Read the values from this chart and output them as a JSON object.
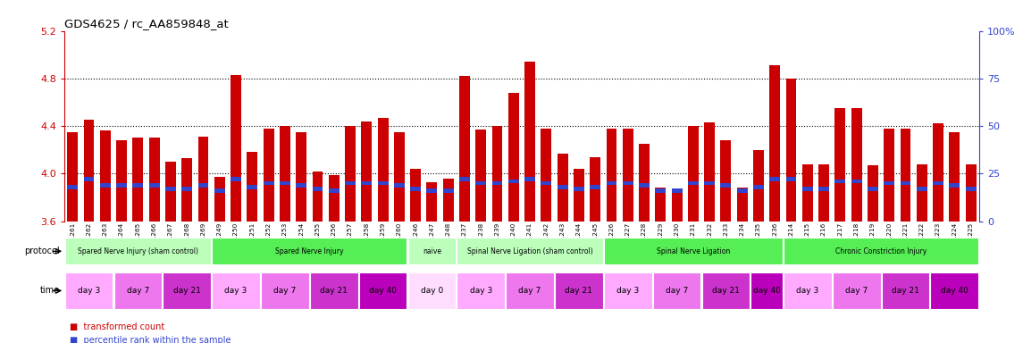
{
  "title": "GDS4625 / rc_AA859848_at",
  "samples": [
    "GSM761261",
    "GSM761262",
    "GSM761263",
    "GSM761264",
    "GSM761265",
    "GSM761266",
    "GSM761267",
    "GSM761268",
    "GSM761269",
    "GSM761249",
    "GSM761250",
    "GSM761251",
    "GSM761252",
    "GSM761253",
    "GSM761254",
    "GSM761255",
    "GSM761256",
    "GSM761257",
    "GSM761258",
    "GSM761259",
    "GSM761260",
    "GSM761246",
    "GSM761247",
    "GSM761248",
    "GSM761237",
    "GSM761238",
    "GSM761239",
    "GSM761240",
    "GSM761241",
    "GSM761242",
    "GSM761243",
    "GSM761244",
    "GSM761245",
    "GSM761226",
    "GSM761227",
    "GSM761228",
    "GSM761229",
    "GSM761230",
    "GSM761231",
    "GSM761232",
    "GSM761233",
    "GSM761234",
    "GSM761235",
    "GSM761236",
    "GSM761214",
    "GSM761215",
    "GSM761216",
    "GSM761217",
    "GSM761218",
    "GSM761219",
    "GSM761220",
    "GSM761221",
    "GSM761222",
    "GSM761223",
    "GSM761224",
    "GSM761225"
  ],
  "red_values": [
    4.35,
    4.45,
    4.36,
    4.28,
    4.3,
    4.3,
    4.1,
    4.13,
    4.31,
    3.97,
    4.83,
    4.18,
    4.38,
    4.4,
    4.35,
    4.02,
    3.99,
    4.4,
    4.44,
    4.47,
    4.35,
    4.04,
    3.93,
    3.96,
    4.82,
    4.37,
    4.4,
    4.68,
    4.94,
    4.38,
    4.17,
    4.04,
    4.14,
    4.38,
    4.38,
    4.25,
    3.88,
    3.87,
    4.4,
    4.43,
    4.28,
    3.88,
    4.2,
    4.91,
    4.8,
    4.08,
    4.08,
    4.55,
    4.55,
    4.07,
    4.38,
    4.38,
    4.08,
    4.42,
    4.35,
    4.08
  ],
  "blue_values": [
    18,
    22,
    19,
    19,
    19,
    19,
    17,
    17,
    19,
    16,
    22,
    18,
    20,
    20,
    19,
    17,
    16,
    20,
    20,
    20,
    19,
    17,
    16,
    16,
    22,
    20,
    20,
    21,
    22,
    20,
    18,
    17,
    18,
    20,
    20,
    19,
    16,
    16,
    20,
    20,
    19,
    16,
    18,
    22,
    22,
    17,
    17,
    21,
    21,
    17,
    20,
    20,
    17,
    20,
    19,
    17
  ],
  "ylim_left": [
    3.6,
    5.2
  ],
  "ylim_right": [
    0,
    100
  ],
  "yticks_left": [
    3.6,
    4.0,
    4.4,
    4.8,
    5.2
  ],
  "yticks_right": [
    0,
    25,
    50,
    75,
    100
  ],
  "hlines": [
    4.0,
    4.4,
    4.8
  ],
  "bar_color": "#cc0000",
  "blue_color": "#3344cc",
  "protocol_groups": [
    {
      "label": "Spared Nerve Injury (sham control)",
      "start": 0,
      "end": 9,
      "color": "#bbffbb"
    },
    {
      "label": "Spared Nerve Injury",
      "start": 9,
      "end": 21,
      "color": "#55ee55"
    },
    {
      "label": "naive",
      "start": 21,
      "end": 24,
      "color": "#bbffbb"
    },
    {
      "label": "Spinal Nerve Ligation (sham control)",
      "start": 24,
      "end": 33,
      "color": "#bbffbb"
    },
    {
      "label": "Spinal Nerve Ligation",
      "start": 33,
      "end": 44,
      "color": "#55ee55"
    },
    {
      "label": "Chronic Constriction Injury",
      "start": 44,
      "end": 56,
      "color": "#55ee55"
    }
  ],
  "time_groups": [
    {
      "label": "day 3",
      "start": 0,
      "end": 3,
      "color": "#ffaaff"
    },
    {
      "label": "day 7",
      "start": 3,
      "end": 6,
      "color": "#ee77ee"
    },
    {
      "label": "day 21",
      "start": 6,
      "end": 9,
      "color": "#cc33cc"
    },
    {
      "label": "day 3",
      "start": 9,
      "end": 12,
      "color": "#ffaaff"
    },
    {
      "label": "day 7",
      "start": 12,
      "end": 15,
      "color": "#ee77ee"
    },
    {
      "label": "day 21",
      "start": 15,
      "end": 18,
      "color": "#cc33cc"
    },
    {
      "label": "day 40",
      "start": 18,
      "end": 21,
      "color": "#bb00bb"
    },
    {
      "label": "day 0",
      "start": 21,
      "end": 24,
      "color": "#ffddff"
    },
    {
      "label": "day 3",
      "start": 24,
      "end": 27,
      "color": "#ffaaff"
    },
    {
      "label": "day 7",
      "start": 27,
      "end": 30,
      "color": "#ee77ee"
    },
    {
      "label": "day 21",
      "start": 30,
      "end": 33,
      "color": "#cc33cc"
    },
    {
      "label": "day 3",
      "start": 33,
      "end": 36,
      "color": "#ffaaff"
    },
    {
      "label": "day 7",
      "start": 36,
      "end": 39,
      "color": "#ee77ee"
    },
    {
      "label": "day 21",
      "start": 39,
      "end": 42,
      "color": "#cc33cc"
    },
    {
      "label": "day 40",
      "start": 42,
      "end": 44,
      "color": "#bb00bb"
    },
    {
      "label": "day 3",
      "start": 44,
      "end": 47,
      "color": "#ffaaff"
    },
    {
      "label": "day 7",
      "start": 47,
      "end": 50,
      "color": "#ee77ee"
    },
    {
      "label": "day 21",
      "start": 50,
      "end": 53,
      "color": "#cc33cc"
    },
    {
      "label": "day 40",
      "start": 53,
      "end": 56,
      "color": "#bb00bb"
    }
  ],
  "left_yaxis_color": "#cc0000",
  "right_yaxis_color": "#3344cc"
}
